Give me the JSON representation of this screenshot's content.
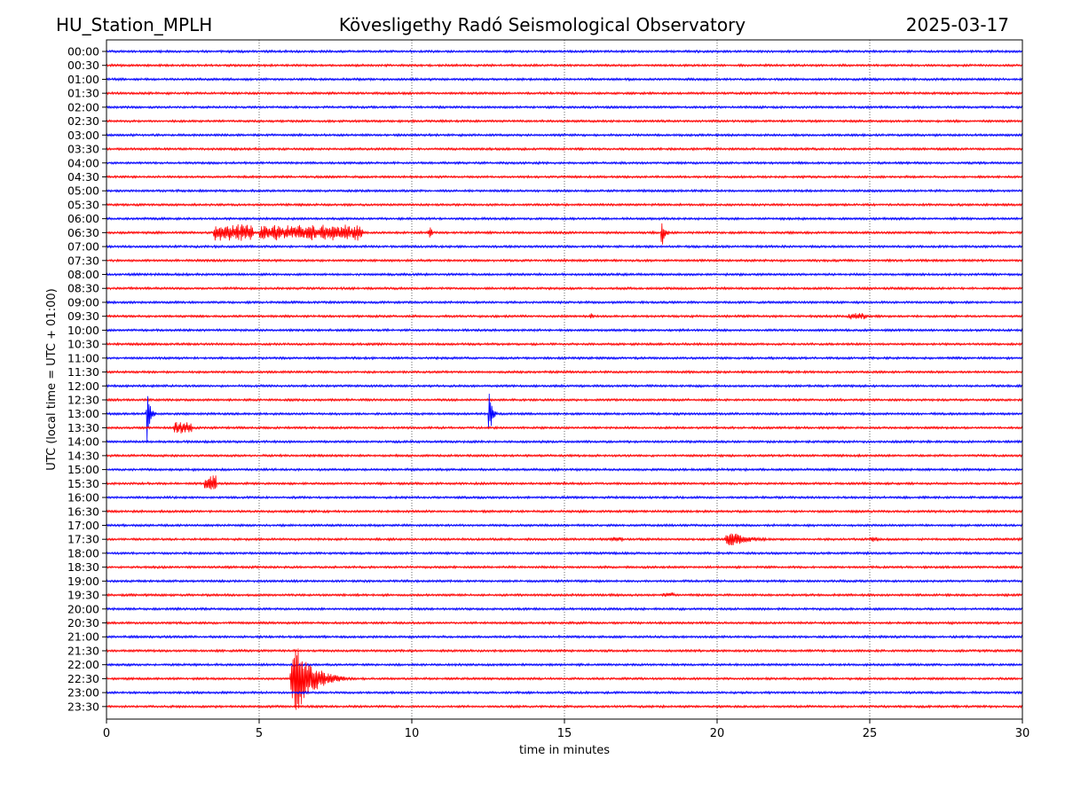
{
  "header": {
    "station": "HU_Station_MPLH",
    "observatory": "Kövesligethy Radó Seismological Observatory",
    "date": "2025-03-17"
  },
  "colors": {
    "trace_even": "#0000ff",
    "trace_odd": "#ff0000",
    "grid": "#000000",
    "axes": "#000000"
  },
  "chart_data": {
    "type": "line",
    "title": "Kövesligethy Radó Seismological Observatory",
    "xlabel": "time in minutes",
    "ylabel": "UTC (local time = UTC + 01:00)",
    "xlim": [
      0,
      30
    ],
    "x_ticks": [
      0,
      5,
      10,
      15,
      20,
      25,
      30
    ],
    "grid": "vertical dotted lines at x = 5, 10, 15, 20, 25",
    "row_labels": [
      "00:00",
      "00:30",
      "01:00",
      "01:30",
      "02:00",
      "02:30",
      "03:00",
      "03:30",
      "04:00",
      "04:30",
      "05:00",
      "05:30",
      "06:00",
      "06:30",
      "07:00",
      "07:30",
      "08:00",
      "08:30",
      "09:00",
      "09:30",
      "10:00",
      "10:30",
      "11:00",
      "11:30",
      "12:00",
      "12:30",
      "13:00",
      "13:30",
      "14:00",
      "14:30",
      "15:00",
      "15:30",
      "16:00",
      "16:30",
      "17:00",
      "17:30",
      "18:00",
      "18:30",
      "19:00",
      "19:30",
      "20:00",
      "20:30",
      "21:00",
      "21:30",
      "22:00",
      "22:30",
      "23:00",
      "23:30"
    ],
    "trace_color_pattern": "alternating: rows starting on the full hour blue, rows starting on the half hour red",
    "noise_amplitude": 1.4,
    "events": [
      {
        "row": "06:30",
        "start": 3.5,
        "end": 4.8,
        "amplitude": 10,
        "kind": "burst"
      },
      {
        "row": "06:30",
        "start": 5.0,
        "end": 8.4,
        "amplitude": 9,
        "kind": "burst"
      },
      {
        "row": "06:30",
        "start": 10.5,
        "end": 10.7,
        "amplitude": 6,
        "kind": "spike"
      },
      {
        "row": "06:30",
        "start": 18.15,
        "end": 18.6,
        "amplitude": 20,
        "kind": "quake"
      },
      {
        "row": "13:00",
        "start": 1.3,
        "end": 1.75,
        "amplitude": 34,
        "kind": "quake"
      },
      {
        "row": "13:00",
        "start": 12.5,
        "end": 12.95,
        "amplitude": 30,
        "kind": "quake"
      },
      {
        "row": "13:30",
        "start": 2.2,
        "end": 2.8,
        "amplitude": 7,
        "kind": "burst"
      },
      {
        "row": "15:30",
        "start": 3.2,
        "end": 3.6,
        "amplitude": 10,
        "kind": "burst"
      },
      {
        "row": "17:30",
        "start": 16.5,
        "end": 16.9,
        "amplitude": 3,
        "kind": "burst"
      },
      {
        "row": "17:30",
        "start": 20.2,
        "end": 23.0,
        "amplitude": 10,
        "kind": "quake"
      },
      {
        "row": "17:30",
        "start": 25.0,
        "end": 25.3,
        "amplitude": 3,
        "kind": "burst"
      },
      {
        "row": "09:30",
        "start": 24.3,
        "end": 24.9,
        "amplitude": 4,
        "kind": "burst"
      },
      {
        "row": "09:30",
        "start": 15.8,
        "end": 16.0,
        "amplitude": 4,
        "kind": "spike"
      },
      {
        "row": "19:30",
        "start": 18.2,
        "end": 18.6,
        "amplitude": 3,
        "kind": "burst"
      },
      {
        "row": "22:30",
        "start": 6.0,
        "end": 8.5,
        "amplitude": 46,
        "kind": "quake"
      }
    ]
  }
}
